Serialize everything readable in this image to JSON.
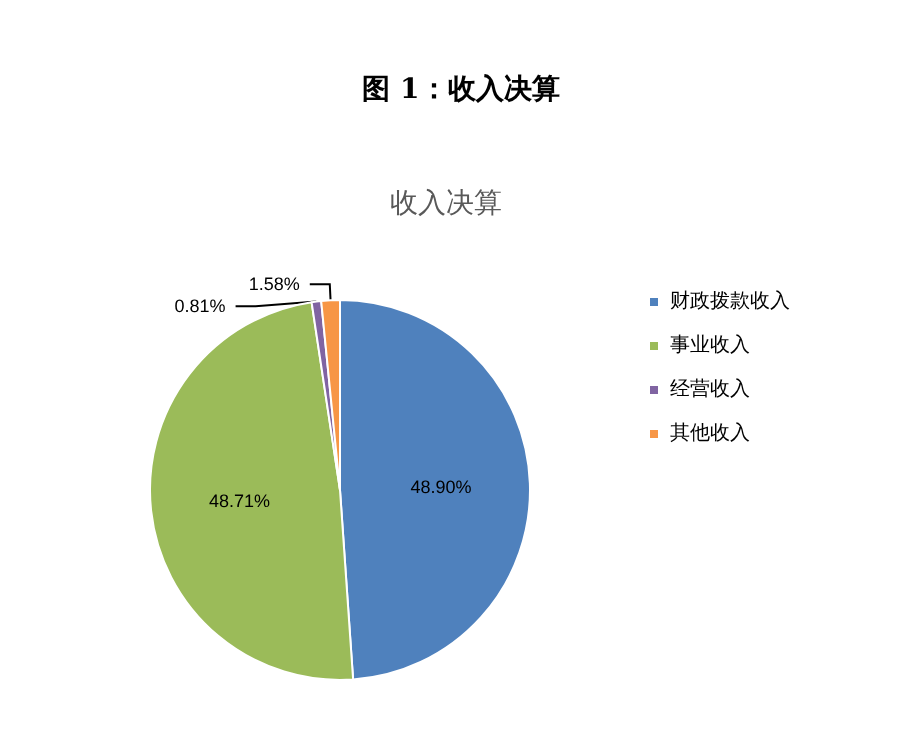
{
  "chart_data": {
    "type": "pie",
    "title": "图 1：收入决算",
    "subtitle": "收入决算",
    "categories": [
      "财政拨款收入",
      "事业收入",
      "经营收入",
      "其他收入"
    ],
    "values": [
      48.9,
      48.71,
      0.81,
      1.58
    ],
    "value_labels": [
      "48.90%",
      "48.71%",
      "0.81%",
      "1.58%"
    ],
    "colors": [
      "#4f81bd",
      "#9bbb59",
      "#8064a2",
      "#f79646"
    ],
    "legend": "right"
  }
}
